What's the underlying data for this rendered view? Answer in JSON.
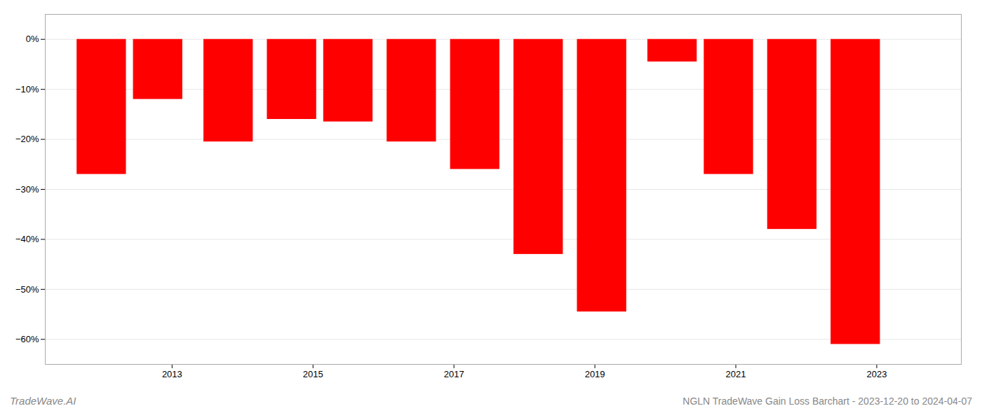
{
  "chart_data": {
    "type": "bar",
    "title": "NGLN TradeWave Gain Loss Barchart - 2023-12-20 to 2024-04-07",
    "annotations": [
      "TradeWave.AI"
    ],
    "x": [
      2012,
      2012.8,
      2013.8,
      2014.7,
      2015.5,
      2016.4,
      2017.3,
      2018.2,
      2019.1,
      2020.1,
      2020.9,
      2021.8,
      2022.7
    ],
    "values": [
      -27.0,
      -12.0,
      -20.5,
      -16.0,
      -16.5,
      -20.5,
      -26.0,
      -43.0,
      -54.5,
      -4.5,
      -27.0,
      -38.0,
      -61.0
    ],
    "color": "#ff0000",
    "xlim": [
      2011.2,
      2024.2
    ],
    "xticks": [
      2013,
      2015,
      2017,
      2019,
      2021,
      2023
    ],
    "ylim": [
      -65,
      5
    ],
    "yticks": [
      {
        "value": 0,
        "label": "0%"
      },
      {
        "value": -10,
        "label": "−10%"
      },
      {
        "value": -20,
        "label": "−20%"
      },
      {
        "value": -30,
        "label": "−30%"
      },
      {
        "value": -40,
        "label": "−40%"
      },
      {
        "value": -50,
        "label": "−50%"
      },
      {
        "value": -60,
        "label": "−60%"
      }
    ],
    "grid": "y"
  }
}
